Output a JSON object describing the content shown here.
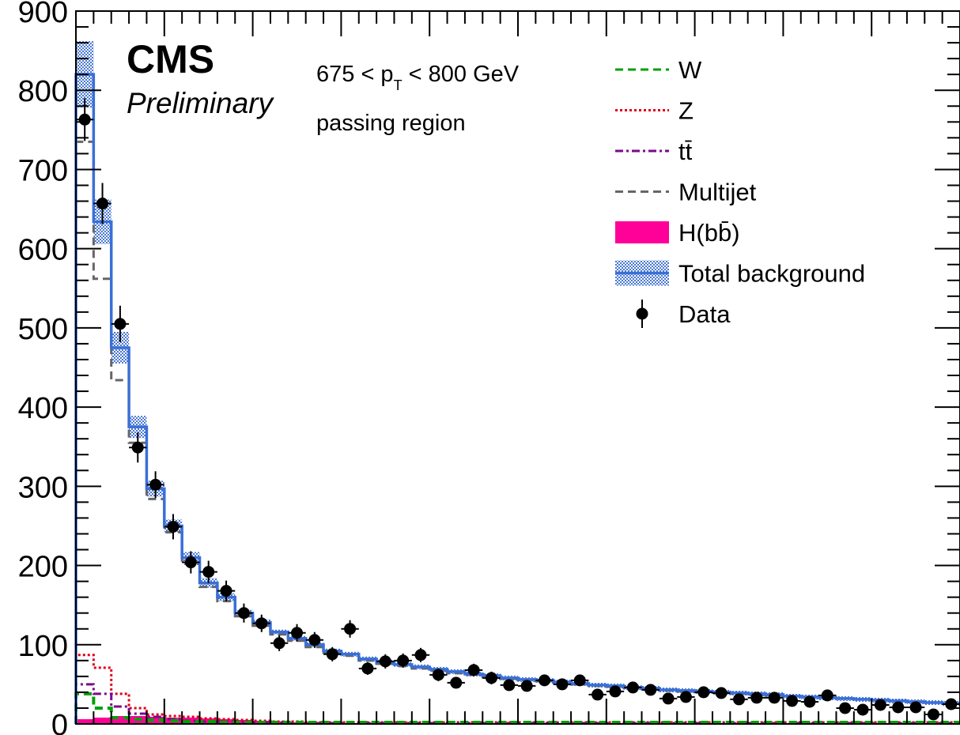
{
  "chart_data": {
    "type": "histogram",
    "title": "",
    "xlabel": "",
    "ylabel": "",
    "xlim": [
      0,
      50
    ],
    "ylim": [
      0,
      900
    ],
    "yticks": [
      0,
      100,
      200,
      300,
      400,
      500,
      600,
      700,
      800,
      900
    ],
    "grid": false,
    "legend_position": "top-right",
    "annotations": {
      "experiment": "CMS",
      "status": "Preliminary",
      "pt_prefix": "675 < p",
      "pt_sub": "T",
      "pt_suffix": " < 800 GeV",
      "region": "passing region"
    },
    "legend": [
      {
        "key": "W",
        "label": "W",
        "style": "dashed",
        "color": "#00a000"
      },
      {
        "key": "Z",
        "label": "Z",
        "style": "dotted",
        "color": "#e0001a"
      },
      {
        "key": "ttbar",
        "label": "tt̄",
        "style": "dashdot",
        "color": "#7a0a8a"
      },
      {
        "key": "multijet",
        "label": "Multijet",
        "style": "dashed",
        "color": "#666666"
      },
      {
        "key": "hbb",
        "label": "H(bb̄)",
        "style": "fill",
        "color": "#ff0099"
      },
      {
        "key": "total",
        "label": "Total background",
        "style": "band",
        "color": "#3a6fd8"
      },
      {
        "key": "data",
        "label": "Data",
        "style": "marker",
        "color": "#000000"
      }
    ],
    "series": [
      {
        "name": "Total background",
        "values": [
          820,
          634,
          475,
          375,
          297,
          250,
          210,
          178,
          160,
          140,
          128,
          116,
          108,
          100,
          92,
          88,
          82,
          78,
          75,
          72,
          69,
          66,
          63,
          61,
          58,
          56,
          55,
          53,
          51,
          49,
          48,
          46,
          45,
          43,
          42,
          41,
          40,
          39,
          38,
          37,
          35,
          34,
          33,
          32,
          31,
          30,
          29,
          28,
          27,
          26
        ],
        "unc": [
          42,
          28,
          20,
          14,
          10,
          8,
          7,
          6,
          5,
          4,
          4,
          3,
          3,
          3,
          3,
          3,
          3,
          3,
          3,
          3,
          3,
          3,
          3,
          3,
          3,
          3,
          3,
          3,
          3,
          3,
          3,
          3,
          3,
          3,
          3,
          3,
          3,
          3,
          3,
          3,
          3,
          3,
          3,
          3,
          3,
          3,
          3,
          3,
          3,
          3
        ]
      },
      {
        "name": "Multijet",
        "values": [
          735,
          562,
          434,
          355,
          284,
          242,
          202,
          173,
          155,
          136,
          124,
          113,
          105,
          97,
          90,
          86,
          80,
          76,
          73,
          70,
          67,
          64,
          62,
          59,
          57,
          55,
          54,
          52,
          50,
          48,
          47,
          45,
          44,
          42,
          41,
          40,
          39,
          38,
          37,
          36,
          35,
          34,
          33,
          32,
          31,
          30,
          29,
          28,
          27,
          26
        ]
      },
      {
        "name": "Z",
        "values": [
          87,
          71,
          38,
          20,
          12,
          10,
          9,
          7,
          6,
          5,
          4,
          3,
          3,
          2,
          2,
          2,
          2,
          2,
          2,
          2,
          2,
          2,
          2,
          2,
          2,
          2,
          2,
          2,
          2,
          2,
          2,
          2,
          2,
          2,
          2,
          2,
          2,
          2,
          2,
          2,
          2,
          2,
          2,
          2,
          2,
          2,
          2,
          2,
          2,
          2
        ]
      },
      {
        "name": "tt̄",
        "values": [
          50,
          38,
          22,
          13,
          9,
          6,
          4,
          3,
          3,
          2,
          2,
          2,
          1,
          1,
          1,
          1,
          1,
          1,
          1,
          1,
          1,
          1,
          1,
          1,
          1,
          1,
          1,
          1,
          1,
          1,
          1,
          1,
          1,
          1,
          1,
          1,
          1,
          1,
          1,
          1,
          1,
          1,
          1,
          1,
          1,
          1,
          1,
          1,
          1,
          1
        ]
      },
      {
        "name": "H(bb̄)",
        "values": [
          6,
          8,
          10,
          10,
          9,
          8,
          8,
          7,
          6,
          5,
          4,
          3,
          2,
          2,
          1,
          1,
          1,
          1,
          0,
          0,
          0,
          0,
          0,
          0,
          0,
          0,
          0,
          0,
          0,
          0,
          0,
          0,
          0,
          0,
          0,
          0,
          0,
          0,
          0,
          0,
          0,
          0,
          0,
          0,
          0,
          0,
          0,
          0,
          0,
          0
        ]
      },
      {
        "name": "W",
        "values": [
          38,
          20,
          8,
          6,
          5,
          4,
          3,
          3,
          2,
          2,
          2,
          2,
          2,
          2,
          2,
          2,
          2,
          2,
          2,
          2,
          2,
          2,
          2,
          2,
          2,
          2,
          2,
          2,
          2,
          2,
          2,
          2,
          2,
          2,
          2,
          2,
          2,
          2,
          2,
          2,
          2,
          2,
          2,
          2,
          2,
          2,
          2,
          2,
          2,
          2
        ]
      },
      {
        "name": "Data",
        "values": [
          763,
          657,
          505,
          349,
          302,
          249,
          204,
          192,
          168,
          140,
          127,
          102,
          115,
          106,
          88,
          120,
          70,
          79,
          80,
          87,
          62,
          52,
          68,
          58,
          49,
          48,
          55,
          50,
          55,
          37,
          41,
          46,
          43,
          32,
          34,
          40,
          39,
          31,
          33,
          33,
          29,
          28,
          36,
          20,
          18,
          24,
          21,
          21,
          12,
          25
        ],
        "errors": [
          27,
          26,
          23,
          19,
          17,
          16,
          14,
          14,
          13,
          12,
          11,
          10,
          11,
          10,
          9,
          11,
          8,
          9,
          9,
          9,
          8,
          7,
          8,
          8,
          7,
          7,
          7,
          7,
          7,
          6,
          6,
          7,
          7,
          6,
          6,
          6,
          6,
          6,
          6,
          6,
          5,
          5,
          6,
          5,
          4,
          5,
          5,
          5,
          4,
          5
        ]
      }
    ]
  }
}
